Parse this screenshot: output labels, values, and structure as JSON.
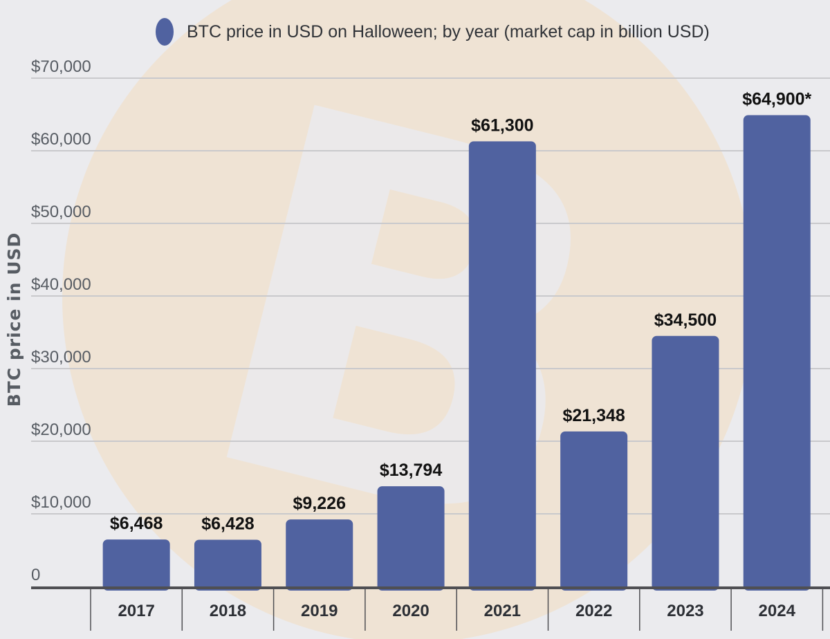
{
  "chart_data": {
    "type": "bar",
    "categories": [
      "2017",
      "2018",
      "2019",
      "2020",
      "2021",
      "2022",
      "2023",
      "2024"
    ],
    "series": [
      {
        "name": "BTC price in USD on Halloween; by year (market cap in billion USD)",
        "values": [
          6468,
          6428,
          9226,
          13794,
          61300,
          21348,
          34500,
          64900
        ],
        "labels": [
          "$6,468",
          "$6,428",
          "$9,226",
          "$13,794",
          "$61,300",
          "$21,348",
          "$34,500",
          "$64,900*"
        ]
      }
    ],
    "ylabel": "BTC price in USD",
    "ylim": [
      0,
      70000
    ],
    "yticks": [
      0,
      10000,
      20000,
      30000,
      40000,
      50000,
      60000,
      70000
    ],
    "ytick_labels": [
      "0",
      "$10,000",
      "$20,000",
      "$30,000",
      "$40,000",
      "$50,000",
      "$60,000",
      "$70,000"
    ],
    "grid": true,
    "legend_position": "top-center",
    "colors": {
      "bar": "#5062a0",
      "grid": "#c9c9cc",
      "axis": "#4f4f53",
      "background": "#ebebee",
      "watermark": "#f3dcc0"
    }
  }
}
